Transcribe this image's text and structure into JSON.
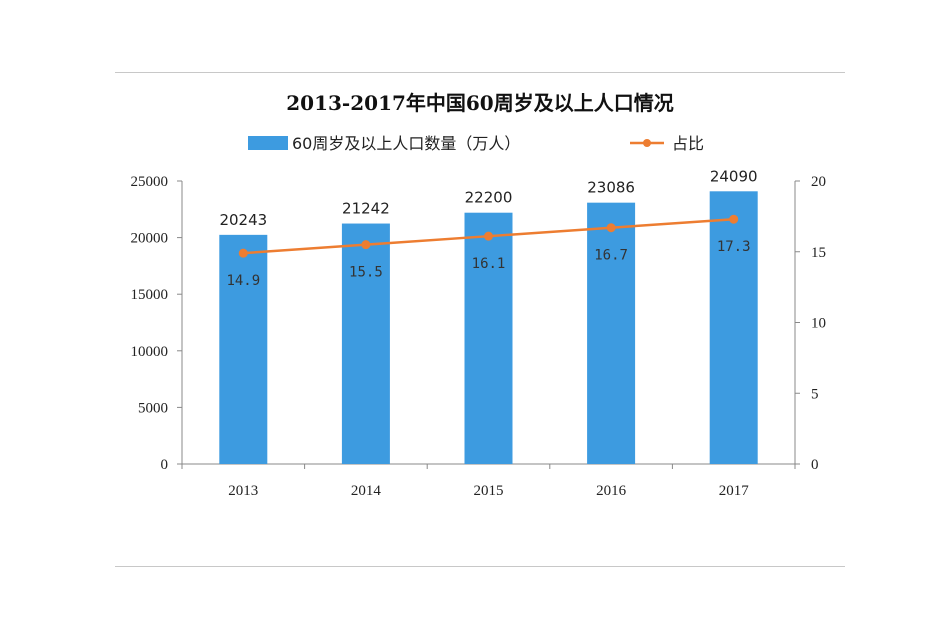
{
  "chart_data": {
    "type": "bar",
    "title": "2013-2017年中国60周岁及以上人口情况",
    "categories": [
      "2013",
      "2014",
      "2015",
      "2016",
      "2017"
    ],
    "series": [
      {
        "name": "60周岁及以上人口数量（万人）",
        "type": "bar",
        "axis": "left",
        "values": [
          20243,
          21242,
          22200,
          23086,
          24090
        ],
        "color": "#3d9be0"
      },
      {
        "name": "占比",
        "type": "line",
        "axis": "right",
        "values": [
          14.9,
          15.5,
          16.1,
          16.7,
          17.3
        ],
        "color": "#ed7d31"
      }
    ],
    "y_left": {
      "range": [
        0,
        25000
      ],
      "ticks": [
        0,
        5000,
        10000,
        15000,
        20000,
        25000
      ]
    },
    "y_right": {
      "range": [
        0,
        20
      ],
      "ticks": [
        0,
        5,
        10,
        15,
        20
      ]
    },
    "bar_labels": [
      "20243",
      "21242",
      "22200",
      "23086",
      "24090"
    ],
    "line_labels": [
      "14.9",
      "15.5",
      "16.1",
      "16.7",
      "17.3"
    ],
    "legend_position": "top-center",
    "grid": false
  }
}
